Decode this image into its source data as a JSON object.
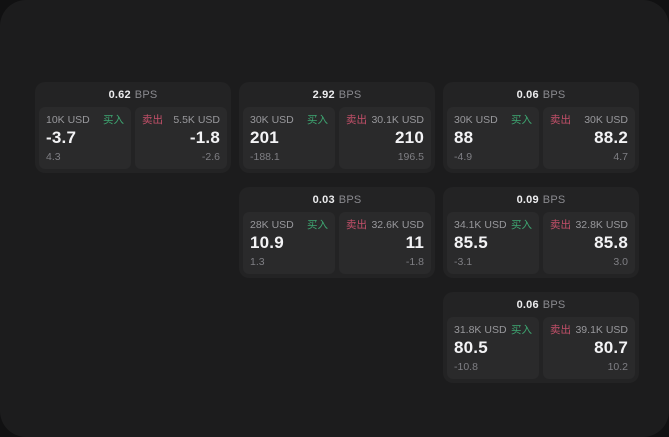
{
  "colors": {
    "buy_green": "#3ea772",
    "sell_red": "#c4506a",
    "window_bg": "#1c1c1d",
    "card_bg": "#232324",
    "panel_bg": "#2a2a2b"
  },
  "cards": [
    {
      "bps": "0.62",
      "unit": "BPS",
      "buy": {
        "amount": "10K USD",
        "label": "买入",
        "price": "-3.7",
        "delta": "4.3"
      },
      "sell": {
        "label": "卖出",
        "amount": "5.5K USD",
        "price": "-1.8",
        "delta": "-2.6"
      }
    },
    {
      "bps": "2.92",
      "unit": "BPS",
      "buy": {
        "amount": "30K USD",
        "label": "买入",
        "price": "201",
        "delta": "-188.1"
      },
      "sell": {
        "label": "卖出",
        "amount": "30.1K USD",
        "price": "210",
        "delta": "196.5"
      }
    },
    {
      "bps": "0.06",
      "unit": "BPS",
      "buy": {
        "amount": "30K USD",
        "label": "买入",
        "price": "88",
        "delta": "-4.9"
      },
      "sell": {
        "label": "卖出",
        "amount": "30K USD",
        "price": "88.2",
        "delta": "4.7"
      }
    },
    {
      "bps": "0.03",
      "unit": "BPS",
      "buy": {
        "amount": "28K USD",
        "label": "买入",
        "price": "10.9",
        "delta": "1.3"
      },
      "sell": {
        "label": "卖出",
        "amount": "32.6K USD",
        "price": "11",
        "delta": "-1.8"
      }
    },
    {
      "bps": "0.09",
      "unit": "BPS",
      "buy": {
        "amount": "34.1K USD",
        "label": "买入",
        "price": "85.5",
        "delta": "-3.1"
      },
      "sell": {
        "label": "卖出",
        "amount": "32.8K USD",
        "price": "85.8",
        "delta": "3.0"
      }
    },
    {
      "bps": "0.06",
      "unit": "BPS",
      "buy": {
        "amount": "31.8K USD",
        "label": "买入",
        "price": "80.5",
        "delta": "-10.8"
      },
      "sell": {
        "label": "卖出",
        "amount": "39.1K USD",
        "price": "80.7",
        "delta": "10.2"
      }
    }
  ]
}
